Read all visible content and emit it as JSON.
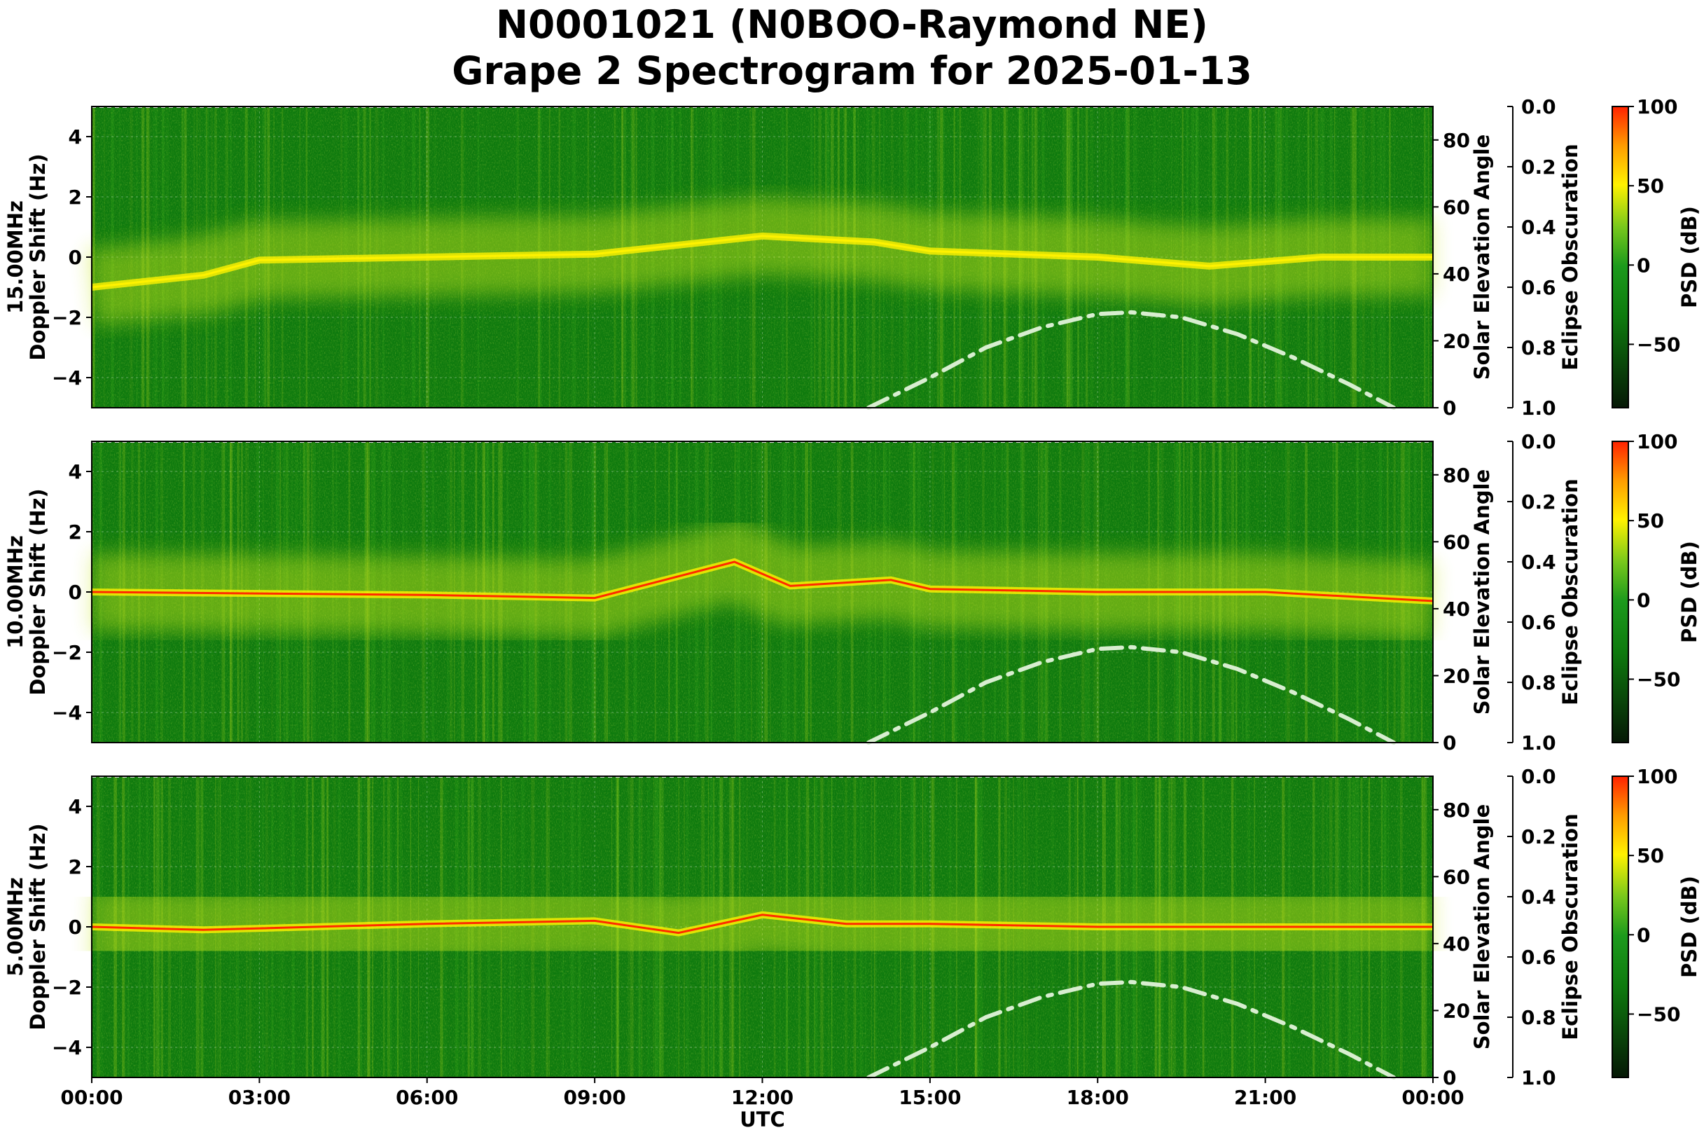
{
  "title": {
    "line1": "N0001021 (N0BOO-Raymond NE)",
    "line2": "Grape 2 Spectrogram for 2025-01-13"
  },
  "colors": {
    "bg_dark_green": "#0e7a0e",
    "mid_green": "#3cae1c",
    "yellow_green": "#c8e81c",
    "yellow": "#fff200",
    "red": "#ff2a00",
    "solar_curve": "#d8eed0"
  },
  "chart_data": [
    {
      "type": "heatmap",
      "band_label": "15.00MHz",
      "ylabel": "Doppler Shift (Hz)",
      "y2label": "Solar Elevation Angle",
      "y3label": "Eclipse Obscuration",
      "colorbar_label": "PSD (dB)",
      "ylim": [
        -5,
        5
      ],
      "y_ticks": [
        "4",
        "2",
        "0",
        "−2",
        "−4"
      ],
      "y2lim": [
        0,
        90
      ],
      "y2_ticks": [
        "80",
        "60",
        "40",
        "20",
        "0"
      ],
      "y3lim": [
        0,
        1
      ],
      "y3_ticks": [
        "0.0",
        "0.2",
        "0.4",
        "0.6",
        "0.8",
        "1.0"
      ],
      "colorbar_range": [
        -90,
        100
      ],
      "colorbar_ticks": [
        "100",
        "50",
        "0",
        "−50"
      ],
      "xlim_hours": [
        0,
        24
      ],
      "carrier_hz": [
        [
          0,
          -1.0
        ],
        [
          1,
          -0.8
        ],
        [
          2,
          -0.6
        ],
        [
          3,
          -0.1
        ],
        [
          6,
          0.0
        ],
        [
          9,
          0.1
        ],
        [
          12,
          0.7
        ],
        [
          14,
          0.5
        ],
        [
          15,
          0.2
        ],
        [
          18,
          0.0
        ],
        [
          20,
          -0.3
        ],
        [
          22,
          0.0
        ],
        [
          24,
          0.0
        ]
      ],
      "solar_elevation": [
        [
          13.9,
          0
        ],
        [
          15,
          9
        ],
        [
          16,
          18
        ],
        [
          17,
          24
        ],
        [
          18,
          28
        ],
        [
          18.6,
          28.5
        ],
        [
          19.5,
          27
        ],
        [
          20.5,
          22
        ],
        [
          21.5,
          15
        ],
        [
          22.5,
          7
        ],
        [
          23.3,
          0
        ]
      ]
    },
    {
      "type": "heatmap",
      "band_label": "10.00MHz",
      "ylabel": "Doppler Shift (Hz)",
      "y2label": "Solar Elevation Angle",
      "y3label": "Eclipse Obscuration",
      "colorbar_label": "PSD (dB)",
      "ylim": [
        -5,
        5
      ],
      "y_ticks": [
        "4",
        "2",
        "0",
        "−2",
        "−4"
      ],
      "y2lim": [
        0,
        90
      ],
      "y2_ticks": [
        "80",
        "60",
        "40",
        "20",
        "0"
      ],
      "y3lim": [
        0,
        1
      ],
      "y3_ticks": [
        "0.0",
        "0.2",
        "0.4",
        "0.6",
        "0.8",
        "1.0"
      ],
      "colorbar_range": [
        -90,
        100
      ],
      "colorbar_ticks": [
        "100",
        "50",
        "0",
        "−50"
      ],
      "xlim_hours": [
        0,
        24
      ],
      "carrier_hz": [
        [
          0,
          0.0
        ],
        [
          6,
          -0.1
        ],
        [
          9,
          -0.2
        ],
        [
          11.5,
          1.0
        ],
        [
          12.5,
          0.2
        ],
        [
          14.3,
          0.4
        ],
        [
          15,
          0.1
        ],
        [
          18,
          0.0
        ],
        [
          21,
          0.0
        ],
        [
          24,
          -0.3
        ]
      ],
      "solar_elevation": [
        [
          13.9,
          0
        ],
        [
          15,
          9
        ],
        [
          16,
          18
        ],
        [
          17,
          24
        ],
        [
          18,
          28
        ],
        [
          18.6,
          28.5
        ],
        [
          19.5,
          27
        ],
        [
          20.5,
          22
        ],
        [
          21.5,
          15
        ],
        [
          22.5,
          7
        ],
        [
          23.3,
          0
        ]
      ]
    },
    {
      "type": "heatmap",
      "band_label": "5.00MHz",
      "ylabel": "Doppler Shift (Hz)",
      "y2label": "Solar Elevation Angle",
      "y3label": "Eclipse Obscuration",
      "colorbar_label": "PSD (dB)",
      "xlabel": "UTC",
      "ylim": [
        -5,
        5
      ],
      "y_ticks": [
        "4",
        "2",
        "0",
        "−2",
        "−4"
      ],
      "y2lim": [
        0,
        90
      ],
      "y2_ticks": [
        "80",
        "60",
        "40",
        "20",
        "0"
      ],
      "y3lim": [
        0,
        1
      ],
      "y3_ticks": [
        "0.0",
        "0.2",
        "0.4",
        "0.6",
        "0.8",
        "1.0"
      ],
      "colorbar_range": [
        -90,
        100
      ],
      "colorbar_ticks": [
        "100",
        "50",
        "0",
        "−50"
      ],
      "xlim_hours": [
        0,
        24
      ],
      "x_ticks": [
        "00:00",
        "03:00",
        "06:00",
        "09:00",
        "12:00",
        "15:00",
        "18:00",
        "21:00",
        "00:00"
      ],
      "carrier_hz": [
        [
          0,
          0.0
        ],
        [
          2,
          -0.1
        ],
        [
          6,
          0.1
        ],
        [
          9,
          0.2
        ],
        [
          10.5,
          -0.2
        ],
        [
          12,
          0.4
        ],
        [
          13.5,
          0.1
        ],
        [
          15,
          0.1
        ],
        [
          18,
          0.0
        ],
        [
          21,
          0.0
        ],
        [
          24,
          0.0
        ]
      ],
      "solar_elevation": [
        [
          13.9,
          0
        ],
        [
          15,
          9
        ],
        [
          16,
          18
        ],
        [
          17,
          24
        ],
        [
          18,
          28
        ],
        [
          18.6,
          28.5
        ],
        [
          19.5,
          27
        ],
        [
          20.5,
          22
        ],
        [
          21.5,
          15
        ],
        [
          22.5,
          7
        ],
        [
          23.3,
          0
        ]
      ]
    }
  ]
}
